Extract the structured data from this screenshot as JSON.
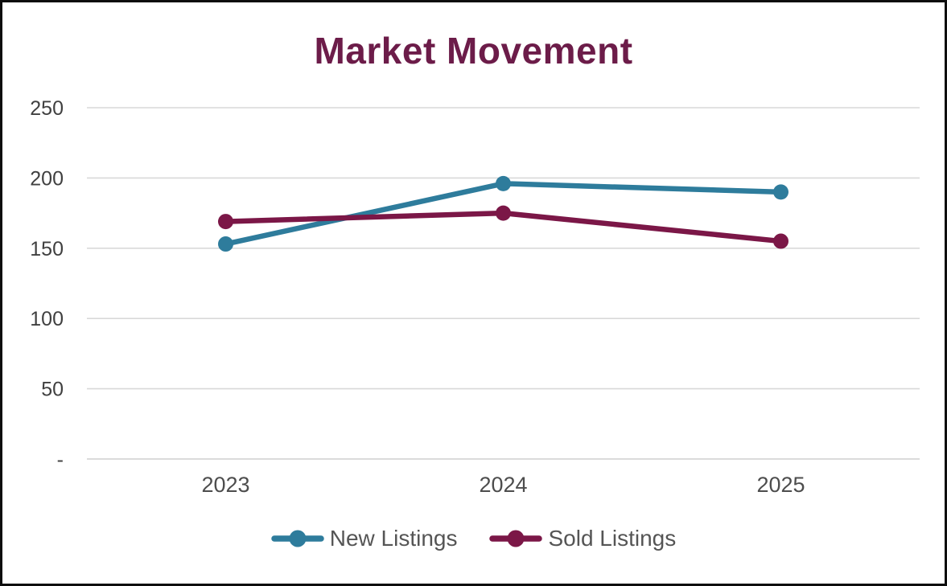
{
  "chart_data": {
    "type": "line",
    "title": "Market Movement",
    "categories": [
      "2023",
      "2024",
      "2025"
    ],
    "series": [
      {
        "name": "New Listings",
        "color": "#2E7C9C",
        "values": [
          153,
          196,
          190
        ]
      },
      {
        "name": "Sold Listings",
        "color": "#7B1747",
        "values": [
          169,
          175,
          155
        ]
      }
    ],
    "xlabel": "",
    "ylabel": "",
    "ylim": [
      0,
      250
    ],
    "yticks": [
      0,
      50,
      100,
      150,
      200,
      250
    ],
    "ytick_labels": [
      "-",
      "50",
      "100",
      "150",
      "200",
      "250"
    ],
    "grid": "horizontal",
    "legend_position": "bottom",
    "colors": {
      "title": "#6C1C49",
      "axis_text": "#404040",
      "xaxis_text": "#4D4D4D",
      "legend_text": "#555555",
      "gridline": "#D9D9D9",
      "axis_line": "#CFCFCF",
      "background": "#FFFFFF",
      "frame_border": "#0D0D0D"
    }
  }
}
